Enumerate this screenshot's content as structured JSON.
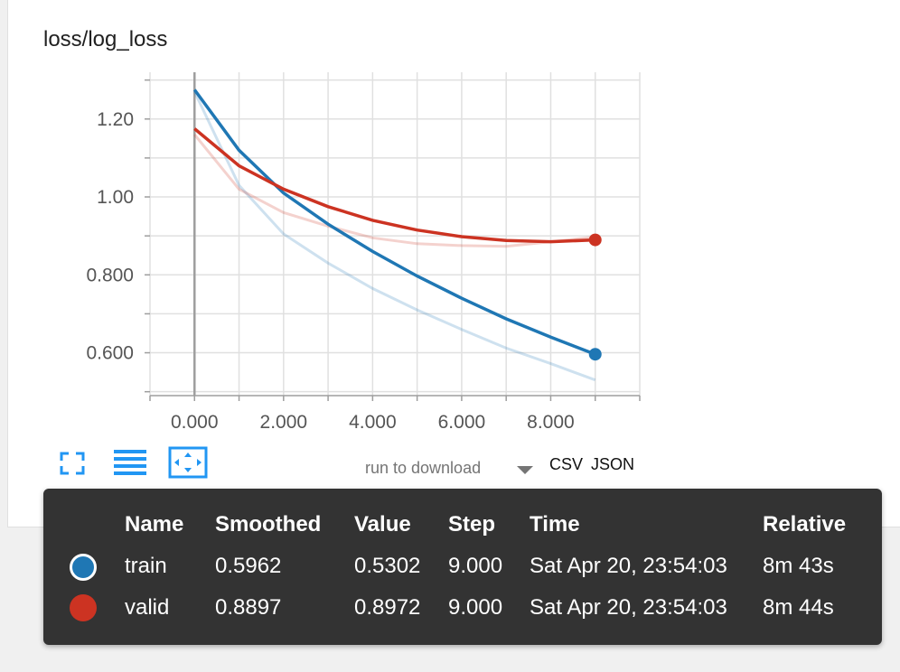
{
  "title": "loss/log_loss",
  "chart_data": {
    "type": "line",
    "title": "loss/log_loss",
    "xlabel": "",
    "ylabel": "",
    "xlim": [
      -1,
      10
    ],
    "ylim": [
      0.49,
      1.32
    ],
    "x_ticks": [
      0,
      2,
      4,
      6,
      8
    ],
    "x_tick_labels": [
      "0.000",
      "2.000",
      "4.000",
      "6.000",
      "8.000"
    ],
    "y_ticks": [
      0.6,
      0.8,
      1.0,
      1.2
    ],
    "y_tick_labels": [
      "0.600",
      "0.800",
      "1.00",
      "1.20"
    ],
    "grid": true,
    "series": [
      {
        "name": "train",
        "color": "#1f77b4",
        "x": [
          0,
          1,
          2,
          3,
          4,
          5,
          6,
          7,
          8,
          9
        ],
        "values": [
          1.27,
          1.03,
          0.905,
          0.83,
          0.765,
          0.71,
          0.66,
          0.612,
          0.572,
          0.5302
        ],
        "smoothed": [
          1.275,
          1.12,
          1.01,
          0.93,
          0.86,
          0.797,
          0.74,
          0.687,
          0.64,
          0.5962
        ]
      },
      {
        "name": "valid",
        "color": "#cc3322",
        "x": [
          0,
          1,
          2,
          3,
          4,
          5,
          6,
          7,
          8,
          9
        ],
        "values": [
          1.16,
          1.02,
          0.96,
          0.925,
          0.895,
          0.88,
          0.875,
          0.873,
          0.885,
          0.8972
        ],
        "smoothed": [
          1.175,
          1.08,
          1.02,
          0.975,
          0.94,
          0.915,
          0.898,
          0.888,
          0.885,
          0.8897
        ]
      }
    ]
  },
  "toolbar": {
    "expand_icon": "fullscreen-icon",
    "log_icon": "lines-icon",
    "fit_icon": "fit-domain-icon"
  },
  "download": {
    "run_label": "run to download",
    "csv": "CSV",
    "json": "JSON"
  },
  "tooltip": {
    "headers": [
      "Name",
      "Smoothed",
      "Value",
      "Step",
      "Time",
      "Relative"
    ],
    "rows": [
      {
        "name": "train",
        "smoothed": "0.5962",
        "value": "0.5302",
        "step": "9.000",
        "time": "Sat Apr 20, 23:54:03",
        "relative": "8m 43s",
        "color": "#1f77b4"
      },
      {
        "name": "valid",
        "smoothed": "0.8897",
        "value": "0.8972",
        "step": "9.000",
        "time": "Sat Apr 20, 23:54:03",
        "relative": "8m 44s",
        "color": "#cc3322"
      }
    ]
  }
}
